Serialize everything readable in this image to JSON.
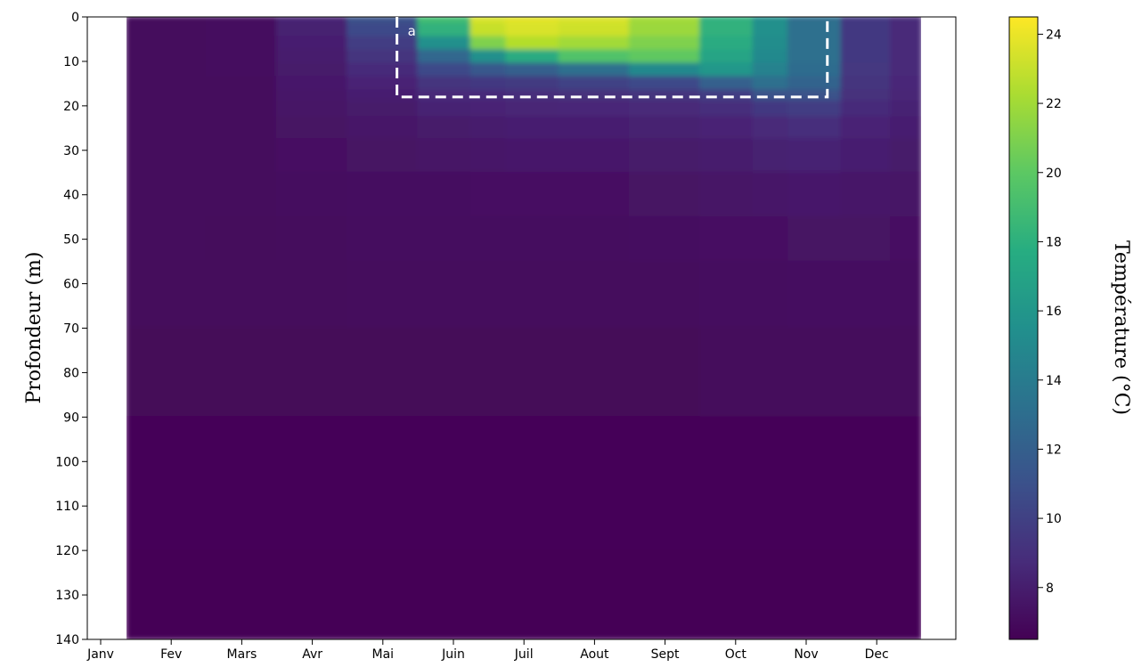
{
  "chart_data": {
    "type": "heatmap",
    "ylabel": "Profondeur (m)",
    "colorbar_label": "Température (°C)",
    "colormap": "viridis",
    "x_categories": [
      "Janv",
      "Fev",
      "Mars",
      "Avr",
      "Mai",
      "Juin",
      "Juil",
      "Aout",
      "Sept",
      "Oct",
      "Nov",
      "Dec"
    ],
    "y_ticks": [
      0,
      10,
      20,
      30,
      40,
      50,
      60,
      70,
      80,
      90,
      100,
      110,
      120,
      130,
      140
    ],
    "ylim": [
      140,
      0
    ],
    "y_inverted": true,
    "colorbar_ticks": [
      8,
      10,
      12,
      14,
      16,
      18,
      20,
      22,
      24
    ],
    "colorbar_range": [
      6.5,
      24.5
    ],
    "data_months": [
      1.5,
      2,
      3,
      4,
      5,
      6,
      6.5,
      7,
      8,
      9,
      10,
      10.5,
      11,
      12,
      12.4
    ],
    "data_depths": [
      0,
      3,
      6,
      9,
      12,
      15,
      18,
      20,
      25,
      30,
      40,
      50,
      60,
      80,
      100,
      140
    ],
    "temperature_profiles": [
      {
        "month": 1.5,
        "temps": [
          7.0,
          7.0,
          7.0,
          7.0,
          7.0,
          7.0,
          7.0,
          7.0,
          7.0,
          7.0,
          7.0,
          7.0,
          6.9,
          6.8,
          6.7,
          6.6
        ]
      },
      {
        "month": 2,
        "temps": [
          7.0,
          7.0,
          7.0,
          7.0,
          7.0,
          7.0,
          7.0,
          7.0,
          7.0,
          7.0,
          7.0,
          7.0,
          6.9,
          6.8,
          6.7,
          6.6
        ]
      },
      {
        "month": 3,
        "temps": [
          7.1,
          7.1,
          7.1,
          7.1,
          7.1,
          7.0,
          7.0,
          7.0,
          7.0,
          7.0,
          7.0,
          6.9,
          6.9,
          6.8,
          6.7,
          6.6
        ]
      },
      {
        "month": 4,
        "temps": [
          8.2,
          8.1,
          8.0,
          7.9,
          7.8,
          7.7,
          7.6,
          7.5,
          7.4,
          7.3,
          7.1,
          7.0,
          6.9,
          6.8,
          6.7,
          6.6
        ]
      },
      {
        "month": 5,
        "temps": [
          11.0,
          10.5,
          9.8,
          9.2,
          8.7,
          8.3,
          8.0,
          7.8,
          7.6,
          7.4,
          7.2,
          7.1,
          7.0,
          6.8,
          6.7,
          6.6
        ]
      },
      {
        "month": 6,
        "temps": [
          19.0,
          18.0,
          15.5,
          12.5,
          10.5,
          9.2,
          8.6,
          8.2,
          7.8,
          7.5,
          7.2,
          7.1,
          7.0,
          6.8,
          6.7,
          6.6
        ]
      },
      {
        "month": 6.5,
        "temps": [
          23.5,
          23.0,
          21.0,
          15.5,
          11.5,
          9.5,
          8.7,
          8.3,
          7.9,
          7.6,
          7.3,
          7.1,
          7.0,
          6.8,
          6.7,
          6.6
        ]
      },
      {
        "month": 7,
        "temps": [
          23.8,
          23.5,
          22.5,
          17.5,
          12.0,
          9.6,
          8.8,
          8.4,
          8.0,
          7.7,
          7.3,
          7.1,
          7.0,
          6.8,
          6.7,
          6.6
        ]
      },
      {
        "month": 8,
        "temps": [
          23.5,
          23.2,
          22.0,
          19.5,
          13.0,
          10.0,
          9.0,
          8.5,
          8.0,
          7.7,
          7.3,
          7.1,
          7.0,
          6.8,
          6.7,
          6.6
        ]
      },
      {
        "month": 9,
        "temps": [
          22.0,
          21.8,
          21.0,
          20.0,
          15.0,
          10.5,
          9.2,
          8.6,
          8.1,
          7.8,
          7.4,
          7.2,
          7.0,
          6.8,
          6.7,
          6.6
        ]
      },
      {
        "month": 10,
        "temps": [
          18.0,
          18.0,
          17.5,
          17.0,
          16.0,
          12.0,
          9.8,
          8.9,
          8.3,
          7.9,
          7.5,
          7.3,
          7.1,
          6.9,
          6.7,
          6.6
        ]
      },
      {
        "month": 10.5,
        "temps": [
          15.5,
          15.5,
          15.3,
          15.0,
          14.5,
          13.0,
          11.0,
          9.5,
          8.6,
          8.1,
          7.6,
          7.3,
          7.1,
          6.9,
          6.7,
          6.6
        ]
      },
      {
        "month": 11,
        "temps": [
          13.0,
          13.0,
          13.0,
          13.0,
          12.8,
          12.2,
          11.0,
          9.8,
          8.8,
          8.2,
          7.7,
          7.4,
          7.2,
          6.9,
          6.7,
          6.6
        ]
      },
      {
        "month": 12,
        "temps": [
          9.5,
          9.5,
          9.5,
          9.5,
          9.4,
          9.2,
          9.0,
          8.7,
          8.3,
          8.0,
          7.6,
          7.4,
          7.2,
          6.9,
          6.7,
          6.6
        ]
      },
      {
        "month": 12.4,
        "temps": [
          8.6,
          8.6,
          8.6,
          8.6,
          8.6,
          8.5,
          8.4,
          8.2,
          8.0,
          7.8,
          7.5,
          7.3,
          7.1,
          6.9,
          6.7,
          6.6
        ]
      }
    ],
    "annotation": {
      "label": "a",
      "box_months": [
        5.2,
        11.3
      ],
      "box_depths": [
        0,
        18
      ]
    },
    "grid": false
  }
}
